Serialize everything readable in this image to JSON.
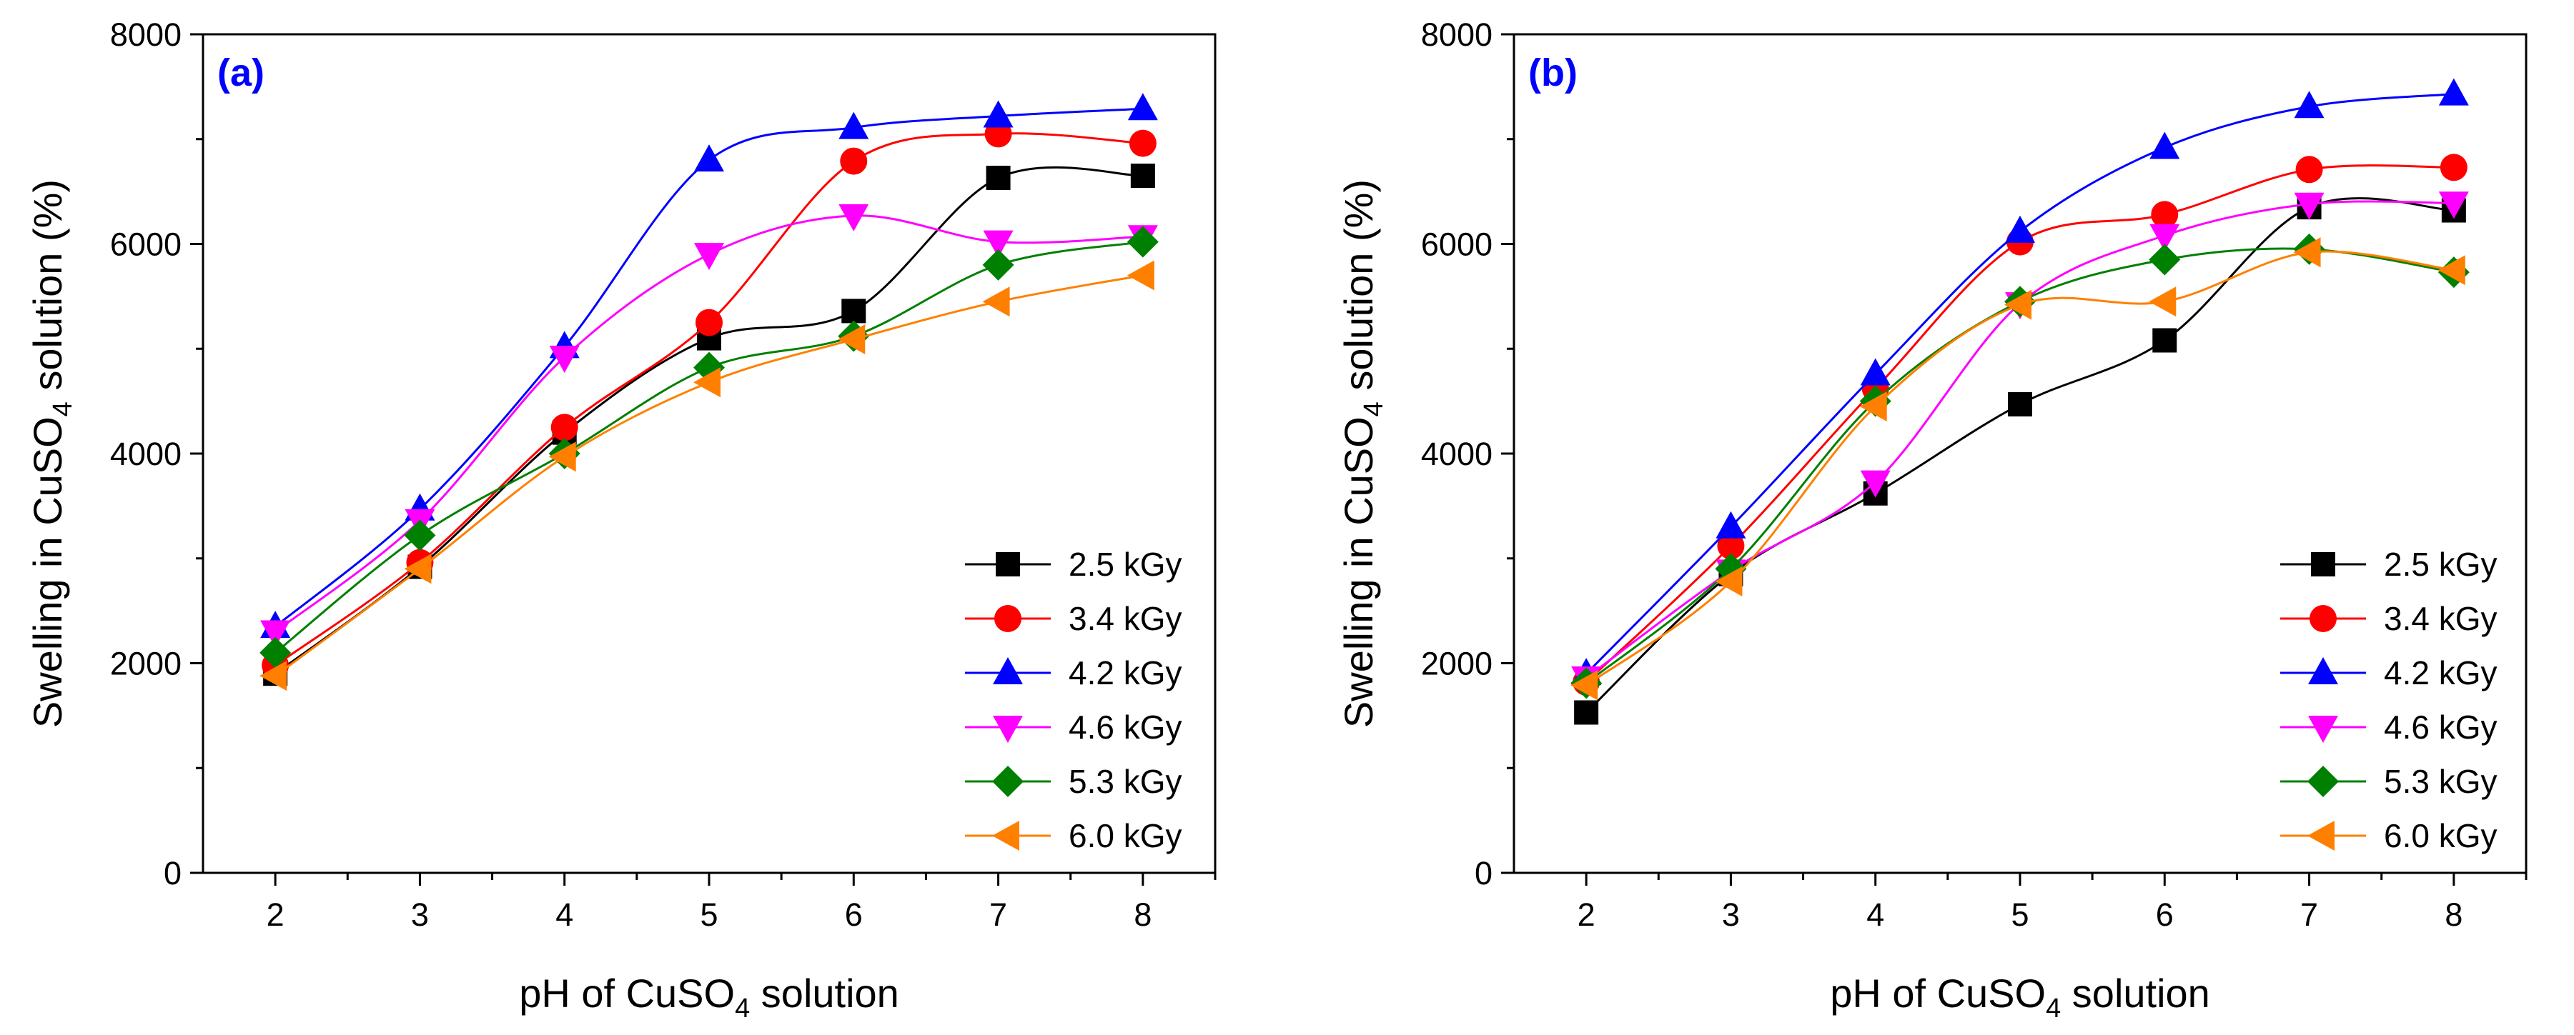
{
  "chart_data": [
    {
      "type": "line",
      "panel_label": "(a)",
      "xlabel": {
        "pre": "pH of CuSO",
        "sub": "4",
        "post": " solution"
      },
      "ylabel": {
        "pre": "Swelling in CuSO",
        "sub": "4",
        "post": " solution (%)"
      },
      "xlim": [
        1.5,
        8.5
      ],
      "ylim": [
        0,
        8000
      ],
      "xticks": [
        2,
        3,
        4,
        5,
        6,
        7,
        8
      ],
      "yticks": [
        0,
        2000,
        4000,
        6000,
        8000
      ],
      "legend_position": "bottom-right",
      "x": [
        2,
        3,
        4,
        5,
        6,
        7,
        8
      ],
      "series": [
        {
          "name": "2.5 kGy",
          "color": "#000000",
          "marker": "square",
          "values": [
            1900,
            2920,
            4200,
            5100,
            5360,
            6630,
            6650
          ]
        },
        {
          "name": "3.4 kGy",
          "color": "#ff0000",
          "marker": "circle",
          "values": [
            1980,
            2960,
            4250,
            5250,
            6790,
            7050,
            6960
          ]
        },
        {
          "name": "4.2 kGy",
          "color": "#0000ff",
          "marker": "triangle-up",
          "values": [
            2350,
            3470,
            5020,
            6800,
            7110,
            7220,
            7290
          ]
        },
        {
          "name": "4.6 kGy",
          "color": "#ff00ff",
          "marker": "triangle-down",
          "values": [
            2300,
            3360,
            4920,
            5900,
            6270,
            6020,
            6070
          ]
        },
        {
          "name": "5.3 kGy",
          "color": "#008000",
          "marker": "diamond",
          "values": [
            2100,
            3220,
            4000,
            4820,
            5120,
            5800,
            6020
          ]
        },
        {
          "name": "6.0 kGy",
          "color": "#ff8000",
          "marker": "triangle-left",
          "values": [
            1880,
            2900,
            3970,
            4680,
            5090,
            5450,
            5700
          ]
        }
      ]
    },
    {
      "type": "line",
      "panel_label": "(b)",
      "xlabel": {
        "pre": "pH of CuSO",
        "sub": "4",
        "post": " solution"
      },
      "ylabel": {
        "pre": "Swelling in CuSO",
        "sub": "4",
        "post": " solution (%)"
      },
      "xlim": [
        1.5,
        8.5
      ],
      "ylim": [
        0,
        8000
      ],
      "xticks": [
        2,
        3,
        4,
        5,
        6,
        7,
        8
      ],
      "yticks": [
        0,
        2000,
        4000,
        6000,
        8000
      ],
      "legend_position": "bottom-right",
      "x": [
        2,
        3,
        4,
        5,
        6,
        7,
        8
      ],
      "series": [
        {
          "name": "2.5 kGy",
          "color": "#000000",
          "marker": "square",
          "values": [
            1530,
            2850,
            3620,
            4470,
            5080,
            6350,
            6320
          ]
        },
        {
          "name": "3.4 kGy",
          "color": "#ff0000",
          "marker": "circle",
          "values": [
            1820,
            3120,
            4620,
            6020,
            6280,
            6710,
            6730
          ]
        },
        {
          "name": "4.2 kGy",
          "color": "#0000ff",
          "marker": "triangle-up",
          "values": [
            1900,
            3300,
            4760,
            6120,
            6920,
            7310,
            7430
          ]
        },
        {
          "name": "4.6 kGy",
          "color": "#ff00ff",
          "marker": "triangle-down",
          "values": [
            1860,
            2880,
            3730,
            5430,
            6080,
            6380,
            6390
          ]
        },
        {
          "name": "5.3 kGy",
          "color": "#008000",
          "marker": "diamond",
          "values": [
            1810,
            2900,
            4500,
            5450,
            5850,
            5950,
            5730
          ]
        },
        {
          "name": "6.0 kGy",
          "color": "#ff8000",
          "marker": "triangle-left",
          "values": [
            1790,
            2780,
            4450,
            5420,
            5450,
            5920,
            5750
          ]
        }
      ]
    }
  ]
}
